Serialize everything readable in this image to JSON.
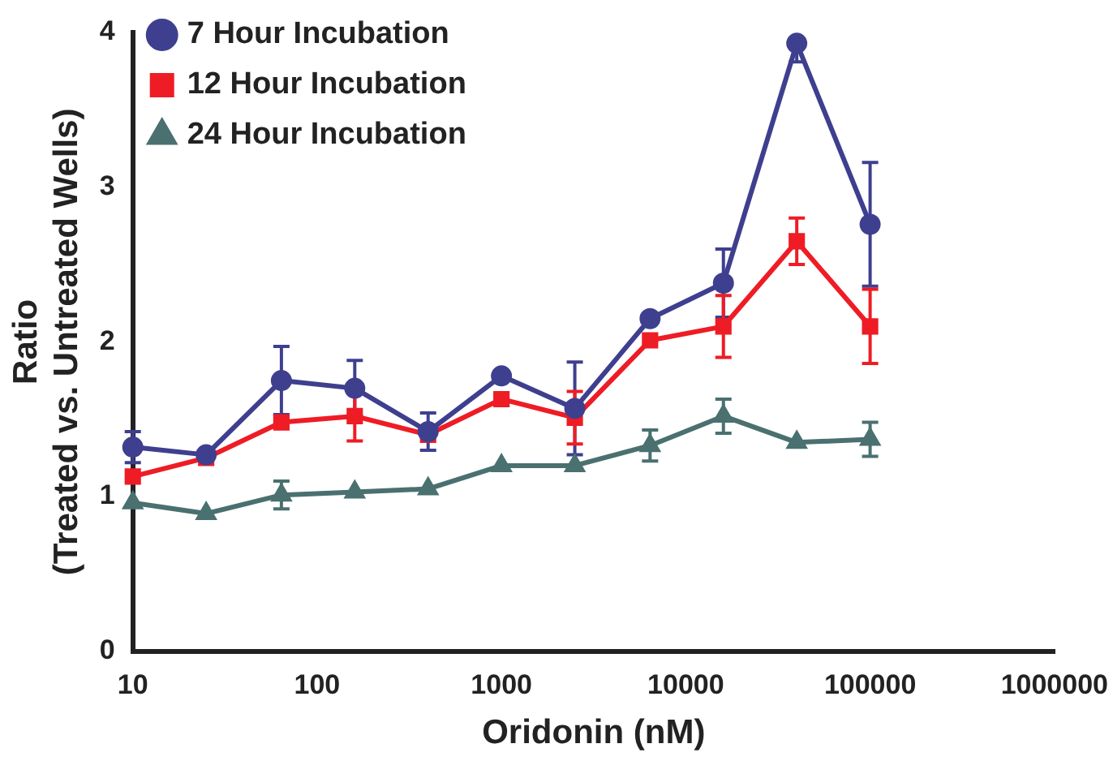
{
  "chart_data": {
    "type": "line",
    "xlabel": "Oridonin (nM)",
    "ylabel": "Ratio\n(Treated vs. Untreated Wells)",
    "log": "x",
    "x": [
      10,
      25,
      64,
      160,
      400,
      1000,
      2500,
      6400,
      16000,
      40000,
      100000
    ],
    "xlim": [
      10,
      1000000
    ],
    "xticks": [
      10,
      100,
      1000,
      10000,
      100000,
      1000000
    ],
    "ylim": [
      0,
      4
    ],
    "yticks": [
      0,
      1,
      2,
      3,
      4
    ],
    "grid": false,
    "legend": "top left",
    "line_style": "solid",
    "series": [
      {
        "name": "7 Hour Incubation",
        "color": "#3f3f8f",
        "marker": "circle",
        "values": [
          1.32,
          1.27,
          1.75,
          1.7,
          1.42,
          1.78,
          1.57,
          2.15,
          2.38,
          3.93,
          2.76
        ],
        "errors": [
          0.1,
          null,
          0.22,
          0.18,
          0.12,
          null,
          0.3,
          null,
          0.22,
          [
            3.81,
            3.93
          ],
          0.4
        ]
      },
      {
        "name": "12 Hour Incubation",
        "color": "#ee1c25",
        "marker": "square",
        "values": [
          1.13,
          1.25,
          1.48,
          1.52,
          1.4,
          1.63,
          1.51,
          2.01,
          2.1,
          2.65,
          2.1
        ],
        "errors": [
          null,
          null,
          null,
          0.16,
          null,
          null,
          0.17,
          null,
          0.2,
          0.15,
          0.24
        ]
      },
      {
        "name": "24 Hour Incubation",
        "color": "#4a7070",
        "marker": "triangle",
        "values": [
          0.96,
          0.89,
          1.01,
          1.03,
          1.05,
          1.2,
          1.2,
          1.33,
          1.52,
          1.35,
          1.37
        ],
        "errors": [
          null,
          null,
          0.09,
          null,
          null,
          null,
          null,
          0.1,
          0.11,
          null,
          0.11
        ]
      }
    ]
  }
}
